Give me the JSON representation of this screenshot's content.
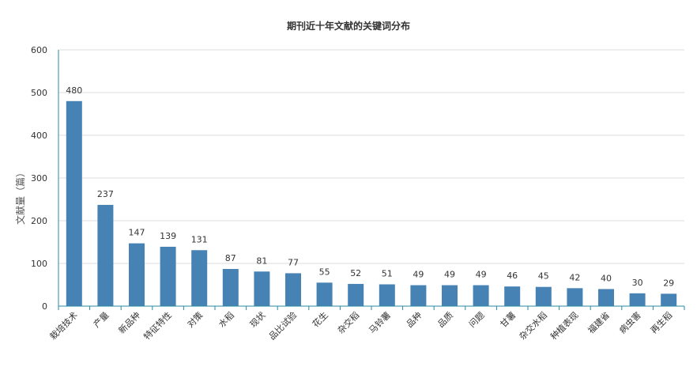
{
  "chart_data": {
    "type": "bar",
    "title": "期刊近十年文献的关键词分布",
    "xlabel": "",
    "ylabel": "文献量（篇）",
    "ylim": [
      0,
      600
    ],
    "yticks": [
      0,
      100,
      200,
      300,
      400,
      500,
      600
    ],
    "grid": true,
    "bar_color": "#4682b4",
    "categories": [
      "栽培技术",
      "产量",
      "新品种",
      "特征特性",
      "对策",
      "水稻",
      "现状",
      "品比试验",
      "花生",
      "杂交稻",
      "马铃薯",
      "品种",
      "品质",
      "问题",
      "甘薯",
      "杂交水稻",
      "种植表现",
      "福建省",
      "病虫害",
      "再生稻"
    ],
    "values": [
      480,
      237,
      147,
      139,
      131,
      87,
      81,
      77,
      55,
      52,
      51,
      49,
      49,
      49,
      46,
      45,
      42,
      40,
      30,
      29
    ]
  }
}
